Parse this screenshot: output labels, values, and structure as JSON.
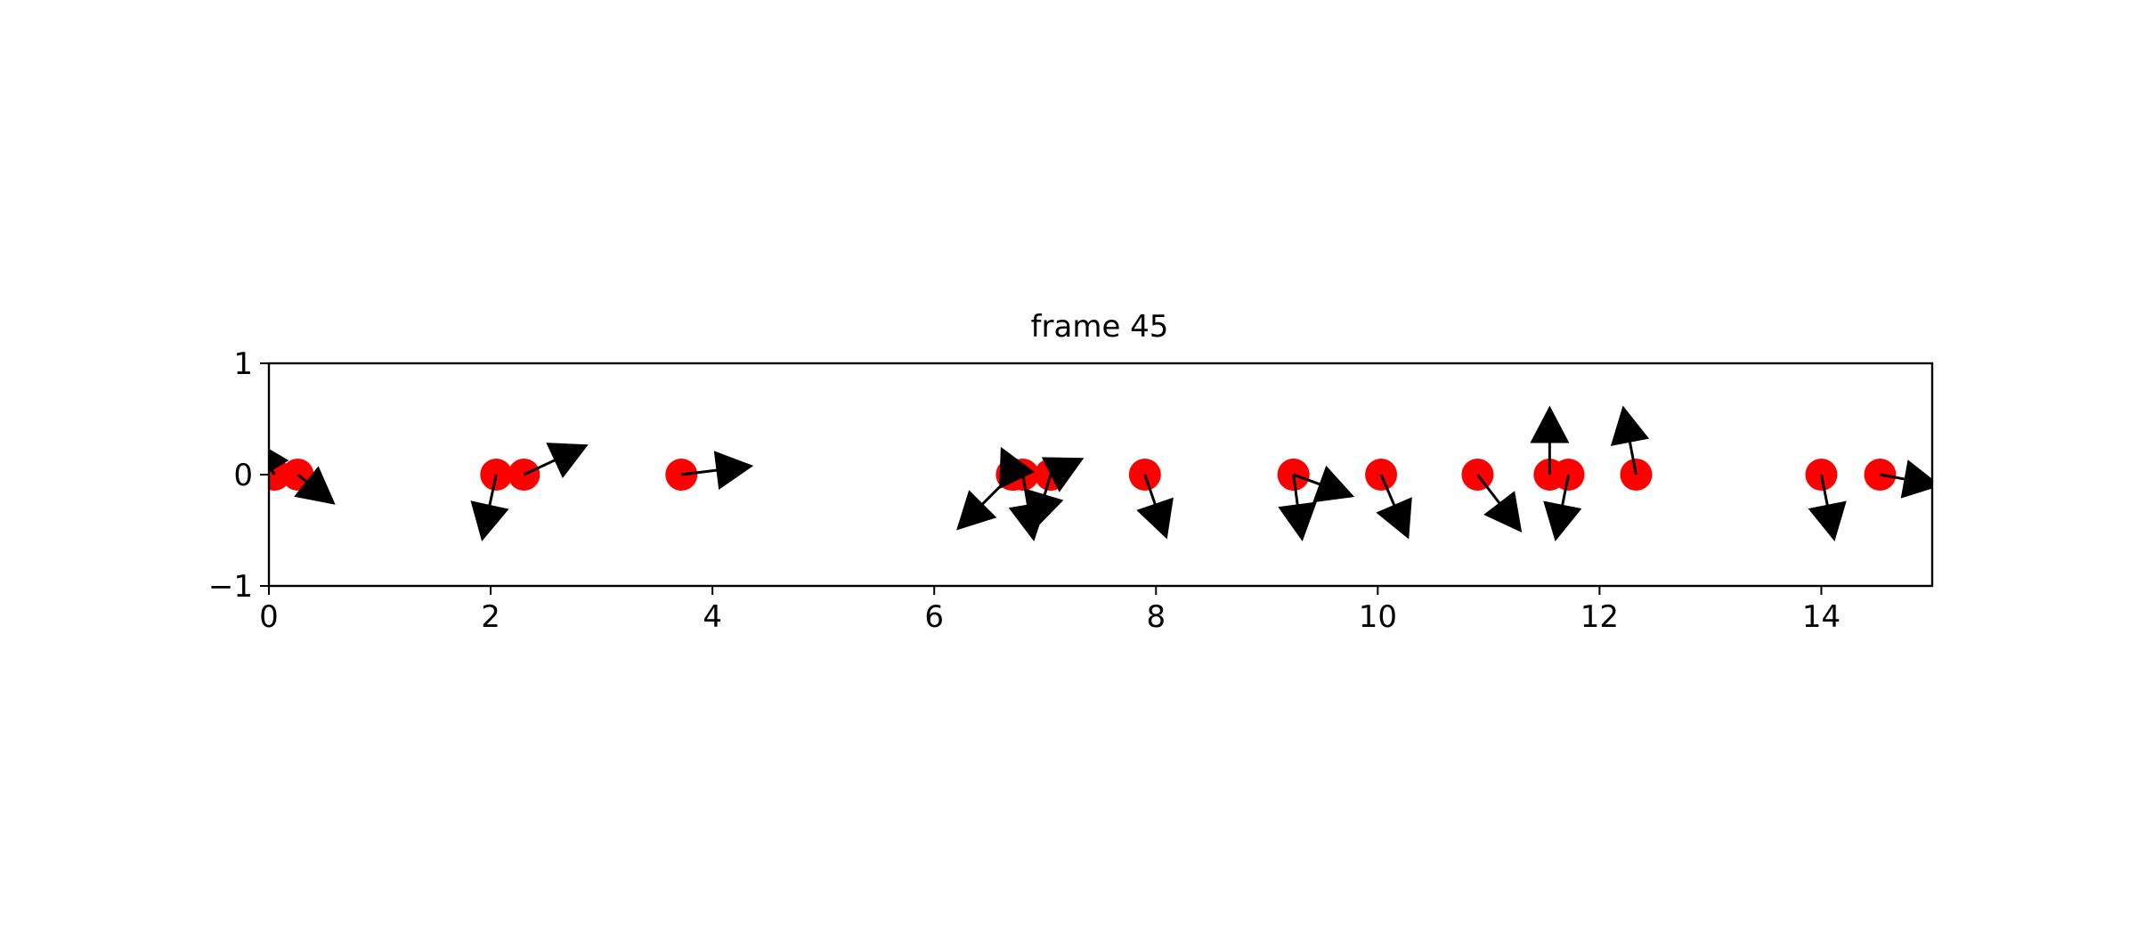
{
  "chart_data": {
    "type": "scatter",
    "title": "frame 45",
    "xlabel": "",
    "ylabel": "",
    "xlim": [
      0,
      15
    ],
    "ylim": [
      -1,
      1
    ],
    "xticks": [
      0,
      2,
      4,
      6,
      8,
      10,
      12,
      14
    ],
    "yticks": [
      -1,
      0,
      1
    ],
    "xtick_labels": [
      "0",
      "2",
      "4",
      "6",
      "8",
      "10",
      "12",
      "14"
    ],
    "ytick_labels": [
      "−1",
      "0",
      "1"
    ],
    "grid": false,
    "point_color": "#ff0000",
    "arrow_color": "#000000",
    "points": [
      {
        "x": 0.05,
        "y": 0,
        "dx": -0.2,
        "dy": 0.32
      },
      {
        "x": 0.26,
        "y": 0,
        "dx": 0.34,
        "dy": -0.27
      },
      {
        "x": 2.05,
        "y": 0,
        "dx": -0.13,
        "dy": -0.6
      },
      {
        "x": 2.3,
        "y": 0,
        "dx": 0.58,
        "dy": 0.27
      },
      {
        "x": 3.72,
        "y": 0,
        "dx": 0.65,
        "dy": 0.08
      },
      {
        "x": 6.7,
        "y": 0,
        "dx": -0.5,
        "dy": -0.5
      },
      {
        "x": 6.72,
        "y": 0,
        "dx": -0.12,
        "dy": 0.25
      },
      {
        "x": 6.8,
        "y": 0,
        "dx": 0.1,
        "dy": -0.6
      },
      {
        "x": 7.05,
        "y": 0,
        "dx": -0.15,
        "dy": -0.5
      },
      {
        "x": 7.05,
        "y": 0,
        "dx": 0.3,
        "dy": 0.15
      },
      {
        "x": 7.9,
        "y": 0,
        "dx": 0.2,
        "dy": -0.58
      },
      {
        "x": 9.24,
        "y": 0,
        "dx": 0.08,
        "dy": -0.6
      },
      {
        "x": 9.24,
        "y": 0,
        "dx": 0.55,
        "dy": -0.2
      },
      {
        "x": 10.03,
        "y": 0,
        "dx": 0.25,
        "dy": -0.58
      },
      {
        "x": 10.9,
        "y": 0,
        "dx": 0.4,
        "dy": -0.52
      },
      {
        "x": 11.55,
        "y": 0,
        "dx": 0.0,
        "dy": 0.62
      },
      {
        "x": 11.72,
        "y": 0,
        "dx": -0.12,
        "dy": -0.6
      },
      {
        "x": 12.33,
        "y": 0,
        "dx": -0.12,
        "dy": 0.62
      },
      {
        "x": 14.0,
        "y": 0,
        "dx": 0.12,
        "dy": -0.6
      },
      {
        "x": 14.53,
        "y": 0,
        "dx": 0.55,
        "dy": -0.1
      }
    ]
  }
}
